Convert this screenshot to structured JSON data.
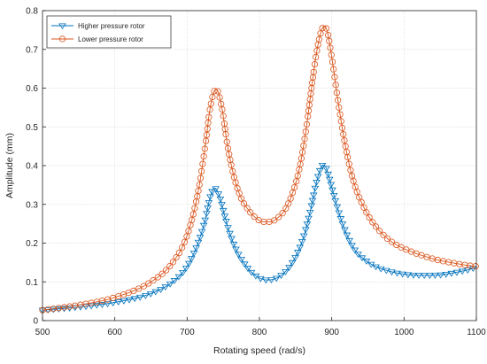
{
  "chart_data": {
    "type": "line",
    "xlabel": "Rotating speed (rad/s)",
    "ylabel": "Amplitude (mm)",
    "xlim": [
      500,
      1100
    ],
    "ylim": [
      0,
      0.8
    ],
    "x_ticks": [
      "500",
      "600",
      "700",
      "800",
      "900",
      "1000",
      "1100"
    ],
    "y_ticks": [
      "0",
      "0.1",
      "0.2",
      "0.3",
      "0.4",
      "0.5",
      "0.6",
      "0.7",
      "0.8"
    ],
    "grid": true,
    "legend_position": "top-left",
    "series": [
      {
        "name": "Higher pressure rotor",
        "color": "#0072BD",
        "marker": "triangle-down",
        "x": [
          500,
          550,
          600,
          650,
          680,
          700,
          715,
          725,
          732,
          738,
          745,
          752,
          760,
          770,
          780,
          790,
          800,
          810,
          820,
          830,
          840,
          850,
          860,
          870,
          878,
          884,
          888,
          892,
          897,
          905,
          915,
          925,
          935,
          945,
          960,
          975,
          990,
          1010,
          1030,
          1050,
          1070,
          1090,
          1100
        ],
        "y": [
          0.027,
          0.035,
          0.047,
          0.07,
          0.1,
          0.14,
          0.2,
          0.26,
          0.32,
          0.342,
          0.32,
          0.27,
          0.22,
          0.175,
          0.145,
          0.123,
          0.11,
          0.105,
          0.107,
          0.117,
          0.135,
          0.165,
          0.21,
          0.28,
          0.35,
          0.39,
          0.402,
          0.395,
          0.365,
          0.31,
          0.25,
          0.205,
          0.175,
          0.158,
          0.14,
          0.13,
          0.123,
          0.118,
          0.117,
          0.118,
          0.124,
          0.132,
          0.138
        ]
      },
      {
        "name": "Lower pressure rotor",
        "color": "#D95319",
        "marker": "circle",
        "x": [
          500,
          550,
          600,
          650,
          680,
          700,
          715,
          725,
          732,
          740,
          748,
          756,
          765,
          775,
          785,
          795,
          805,
          815,
          825,
          835,
          845,
          855,
          865,
          872,
          878,
          883,
          887,
          890,
          894,
          900,
          910,
          920,
          930,
          945,
          960,
          975,
          990,
          1010,
          1030,
          1050,
          1070,
          1090,
          1100
        ],
        "y": [
          0.027,
          0.04,
          0.06,
          0.1,
          0.15,
          0.22,
          0.33,
          0.45,
          0.55,
          0.598,
          0.55,
          0.45,
          0.37,
          0.315,
          0.285,
          0.265,
          0.255,
          0.255,
          0.265,
          0.285,
          0.325,
          0.39,
          0.5,
          0.6,
          0.68,
          0.73,
          0.755,
          0.76,
          0.745,
          0.68,
          0.55,
          0.44,
          0.36,
          0.29,
          0.245,
          0.215,
          0.195,
          0.178,
          0.165,
          0.155,
          0.148,
          0.142,
          0.14
        ]
      }
    ]
  }
}
